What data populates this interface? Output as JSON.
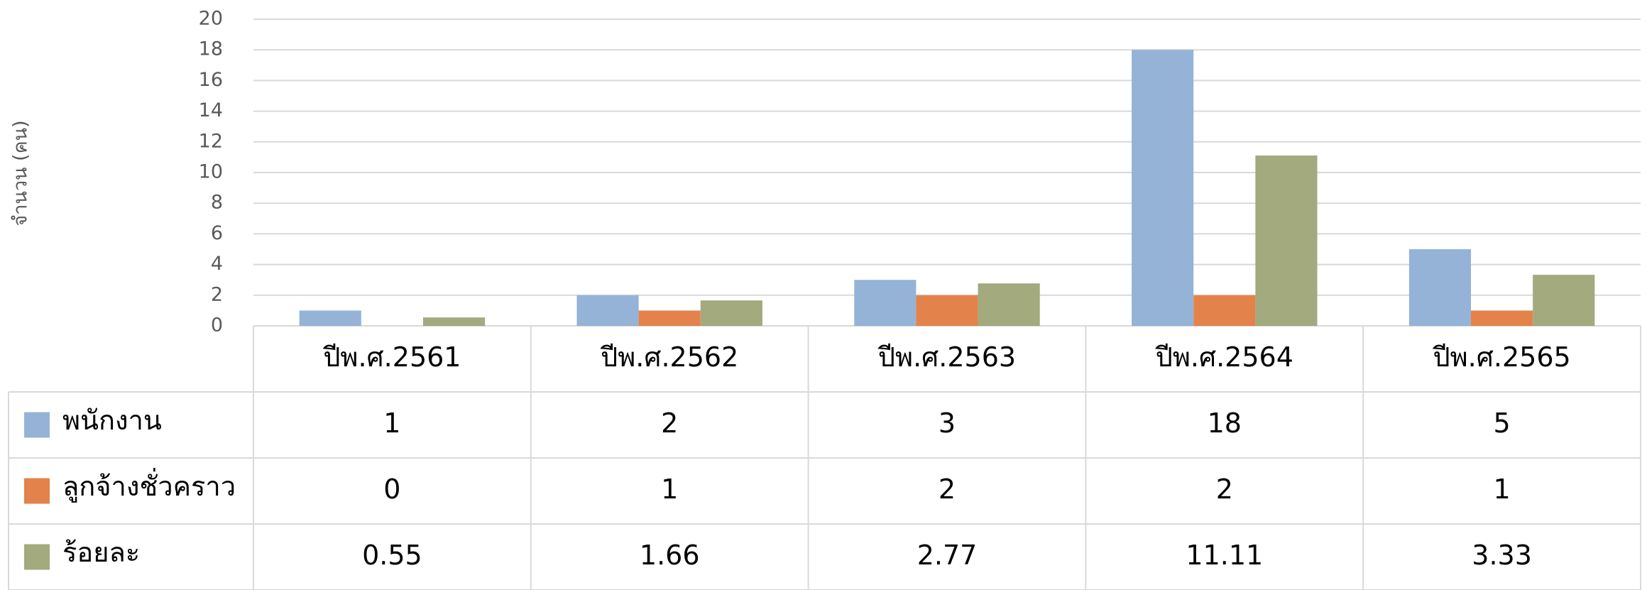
{
  "chart_data": {
    "type": "bar",
    "y_label": "จำนวน (คน)",
    "categories": [
      "ปีพ.ศ.2561",
      "ปีพ.ศ.2562",
      "ปีพ.ศ.2563",
      "ปีพ.ศ.2564",
      "ปีพ.ศ.2565"
    ],
    "series": [
      {
        "name": "พนักงาน",
        "color": "#95b3d7",
        "values": [
          1,
          2,
          3,
          18,
          5
        ]
      },
      {
        "name": "ลูกจ้างชั่วคราว",
        "color": "#e3834b",
        "values": [
          0,
          1,
          2,
          2,
          1
        ]
      },
      {
        "name": "ร้อยละ",
        "color": "#a2aa7e",
        "values": [
          0.55,
          1.66,
          2.77,
          11.11,
          3.33
        ]
      }
    ],
    "ylim": [
      0,
      20
    ],
    "yticks": [
      0,
      2,
      4,
      6,
      8,
      10,
      12,
      14,
      16,
      18,
      20
    ],
    "grid": true,
    "data_table": true
  }
}
